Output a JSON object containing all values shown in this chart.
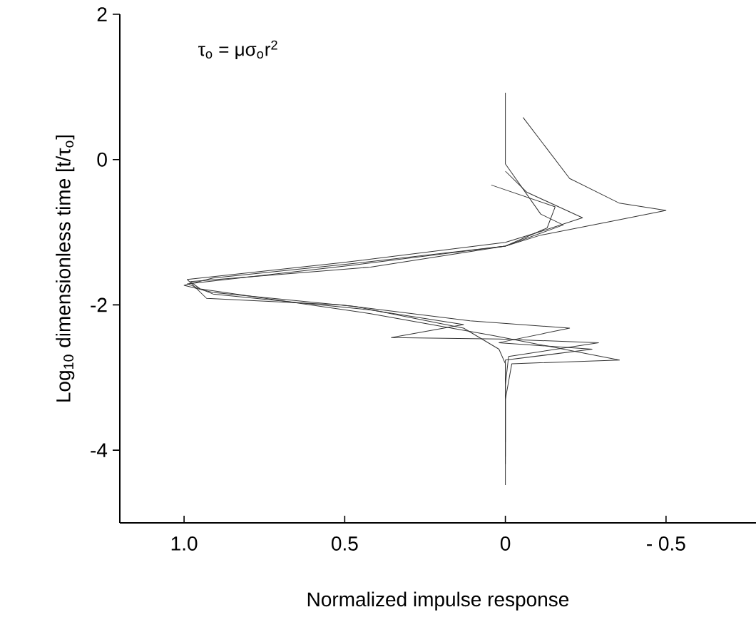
{
  "chart_data": {
    "type": "line",
    "xlabel": "Normalized impulse response",
    "ylabel": "Log$_{10}$ dimensionless time [t/τ$_{o}$]",
    "annotations": [
      "τ$_{o}$ = μσ$_{o}$r$^{2}$"
    ],
    "xlim": [
      1.2,
      -0.78
    ],
    "ylim": [
      -5,
      2
    ],
    "xticks": [
      {
        "value": 1,
        "label": "1.0"
      },
      0.5,
      0,
      {
        "value": -0.5,
        "label": "- 0.5"
      }
    ],
    "yticks": [
      2,
      0,
      -2,
      -4
    ],
    "grid": false,
    "marker": "none",
    "line_style": "solid",
    "series": [
      {
        "color": "#333333",
        "x": [
          0,
          0,
          -0.11,
          -0.18,
          0,
          0.47,
          0.91,
          1.0,
          0.91,
          0.47,
          0.13,
          0.02,
          0,
          0
        ],
        "values": [
          0.92,
          -0.06,
          -0.75,
          -0.9,
          -1.19,
          -1.43,
          -1.63,
          -1.73,
          -1.83,
          -2.02,
          -2.32,
          -2.61,
          -2.81,
          -4.48
        ]
      },
      {
        "color": "#333333",
        "x": [
          -0.055,
          -0.2,
          -0.355,
          -0.5,
          -0.33,
          -0.11,
          0,
          0.42,
          0.98,
          0.95,
          0.42,
          0.04,
          -0.355,
          -0.02,
          0,
          0
        ],
        "values": [
          0.58,
          -0.26,
          -0.6,
          -0.7,
          -0.85,
          -1.04,
          -1.19,
          -1.48,
          -1.68,
          -1.78,
          -2.12,
          -2.42,
          -2.76,
          -2.81,
          -3.3,
          -4.19
        ]
      },
      {
        "color": "#333333",
        "x": [
          0.044,
          -0.155,
          -0.13,
          0,
          0.47,
          0.99,
          0.91,
          0.42,
          0.13,
          0.355,
          0.02,
          -0.29,
          -0.01,
          0,
          0
        ],
        "values": [
          -0.35,
          -0.65,
          -0.94,
          -1.19,
          -1.45,
          -1.71,
          -1.85,
          -2.07,
          -2.27,
          -2.45,
          -2.47,
          -2.52,
          -2.71,
          -3.1,
          -4.09
        ]
      },
      {
        "color": "#333333",
        "x": [
          0,
          -0.067,
          -0.24,
          -0.11,
          0,
          0.51,
          0.99,
          0.93,
          0.51,
          0.11,
          -0.2,
          0.02,
          -0.27,
          0,
          0
        ],
        "values": [
          -0.16,
          -0.45,
          -0.8,
          -0.99,
          -1.14,
          -1.42,
          -1.65,
          -1.91,
          -2.0,
          -2.22,
          -2.32,
          -2.52,
          -2.61,
          -2.76,
          -3.89
        ]
      }
    ]
  }
}
